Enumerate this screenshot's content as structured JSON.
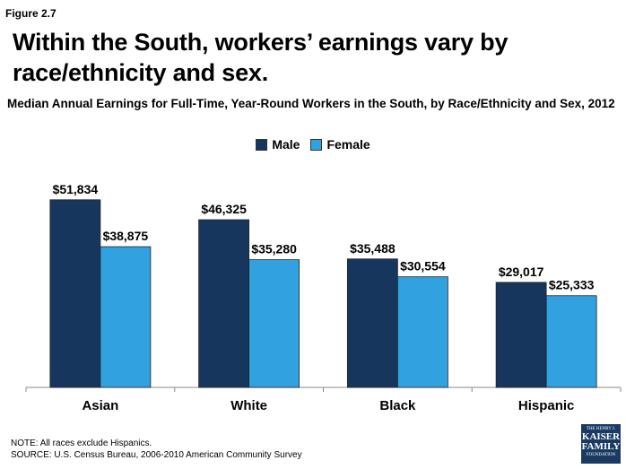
{
  "figure_label": "Figure 2.7",
  "headline": "Within the South, workers’ earnings vary by race/ethnicity and sex.",
  "colors": {
    "male": "#17365d",
    "female": "#31a1e0"
  },
  "chart_data": {
    "type": "bar",
    "title": "Median Annual Earnings for Full-Time, Year-Round Workers in the South, by Race/Ethnicity and Sex, 2012",
    "categories": [
      "Asian",
      "White",
      "Black",
      "Hispanic"
    ],
    "series": [
      {
        "name": "Male",
        "values": [
          51834,
          46325,
          35488,
          29017
        ],
        "labels": [
          "$51,834",
          "$46,325",
          "$35,488",
          "$29,017"
        ]
      },
      {
        "name": "Female",
        "values": [
          38875,
          35280,
          30554,
          25333
        ],
        "labels": [
          "$38,875",
          "$35,280",
          "$30,554",
          "$25,333"
        ]
      }
    ],
    "ylim": [
      0,
      55000
    ],
    "grid": false,
    "legend": "top-center",
    "xlabel": "",
    "ylabel": ""
  },
  "footnote": {
    "note": "NOTE: All races exclude Hispanics.",
    "source": "SOURCE: U.S. Census Bureau, 2006-2010 American Community Survey"
  },
  "logo": {
    "line1": "THE HENRY J.",
    "line2": "KAISER",
    "line3": "FAMILY",
    "line4": "FOUNDATION"
  }
}
